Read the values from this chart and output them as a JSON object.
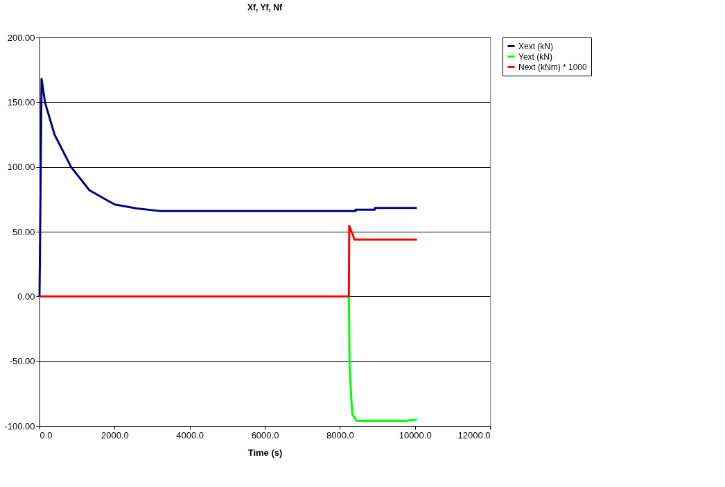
{
  "chart_data": {
    "type": "line",
    "title": "Xf, Yf, Nf",
    "xlabel": "Time (s)",
    "xlim": [
      0,
      12000
    ],
    "xticks": [
      {
        "value": 0,
        "label": "0.0"
      },
      {
        "value": 2000,
        "label": "2000.0"
      },
      {
        "value": 4000,
        "label": "4000.0"
      },
      {
        "value": 6000,
        "label": "6000.0"
      },
      {
        "value": 8000,
        "label": "8000.0"
      },
      {
        "value": 10000,
        "label": "10000.0"
      },
      {
        "value": 12000,
        "label": "12000.0"
      }
    ],
    "ylim": [
      -100,
      200
    ],
    "yticks": [
      {
        "value": -100,
        "label": "-100.00"
      },
      {
        "value": -50,
        "label": "-50.00"
      },
      {
        "value": 0,
        "label": "0.00"
      },
      {
        "value": 50,
        "label": "50.00"
      },
      {
        "value": 100,
        "label": "100.00"
      },
      {
        "value": 150,
        "label": "150.00"
      },
      {
        "value": 200,
        "label": "200.00"
      }
    ],
    "grid": "y",
    "legend": "right",
    "line_style": "solid",
    "marker": "none",
    "series": [
      {
        "name": "Xext (kN)",
        "color": "#000080",
        "x": [
          0,
          10,
          55,
          145,
          400,
          840,
          1330,
          2000,
          2600,
          3200,
          5000,
          8418,
          8420,
          8930,
          8935,
          10050
        ],
        "values": [
          0,
          28,
          168,
          150,
          125,
          100,
          82,
          71,
          68,
          66,
          66,
          66,
          67,
          67,
          68.3,
          68.3
        ]
      },
      {
        "name": "Yext (kN)",
        "color": "#00ff00",
        "x": [
          8240,
          8260,
          8330,
          8450,
          9750,
          10050
        ],
        "values": [
          0,
          -56,
          -91,
          -96,
          -96,
          -95
        ]
      },
      {
        "name": "Next (kNm) * 1000",
        "color": "#ff0000",
        "x": [
          0,
          8240,
          8250,
          8390,
          10050
        ],
        "values": [
          0,
          0,
          54.6,
          44,
          44
        ]
      }
    ]
  }
}
